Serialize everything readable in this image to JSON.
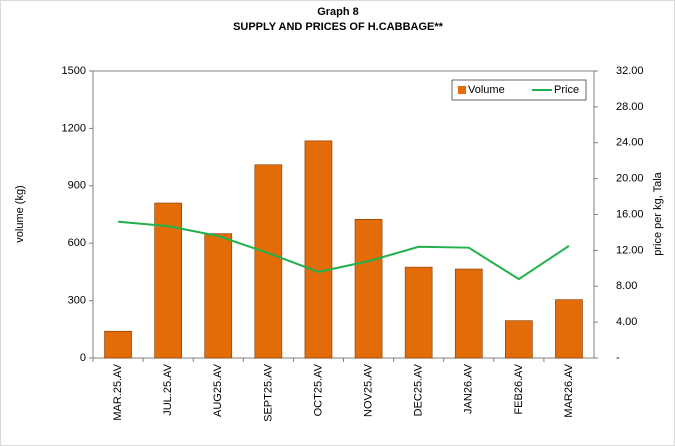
{
  "chart_data": {
    "type": "bar_line",
    "title": "Graph 8",
    "subtitle": "SUPPLY AND PRICES OF H.CABBAGE**",
    "y_label": "volume (kg)",
    "y2_label": "price per kg, Tala",
    "categories": [
      "MAR.25.AV",
      "JUL.25.AV",
      "AUG25.AV",
      "SEPT25.AV",
      "OCT25.AV",
      "NOV25.AV",
      "DEC25.AV",
      "JAN26.AV",
      "FEB26.AV",
      "MAR26.AV"
    ],
    "series": [
      {
        "name": "Volume",
        "type": "bar",
        "color": "#e36c09",
        "values": [
          140,
          810,
          650,
          1010,
          1135,
          725,
          475,
          465,
          195,
          305
        ]
      },
      {
        "name": "Price",
        "type": "line",
        "axis": "y2",
        "color": "#22b14c",
        "values": [
          15.2,
          14.7,
          13.6,
          11.7,
          9.6,
          10.8,
          12.4,
          12.3,
          8.8,
          12.5
        ]
      }
    ],
    "ylim": [
      0,
      1500
    ],
    "yticks": [
      0,
      300,
      600,
      900,
      1200,
      1500
    ],
    "y2lim": [
      0,
      32
    ],
    "y2ticks": [
      {
        "value": 0,
        "label": "-"
      },
      {
        "value": 4,
        "label": "4.00"
      },
      {
        "value": 8,
        "label": "8.00"
      },
      {
        "value": 12,
        "label": "12.00"
      },
      {
        "value": 16,
        "label": "16.00"
      },
      {
        "value": 20,
        "label": "20.00"
      },
      {
        "value": 24,
        "label": "24.00"
      },
      {
        "value": 28,
        "label": "28.00"
      },
      {
        "value": 32,
        "label": "32.00"
      }
    ],
    "legend": "top-right"
  }
}
